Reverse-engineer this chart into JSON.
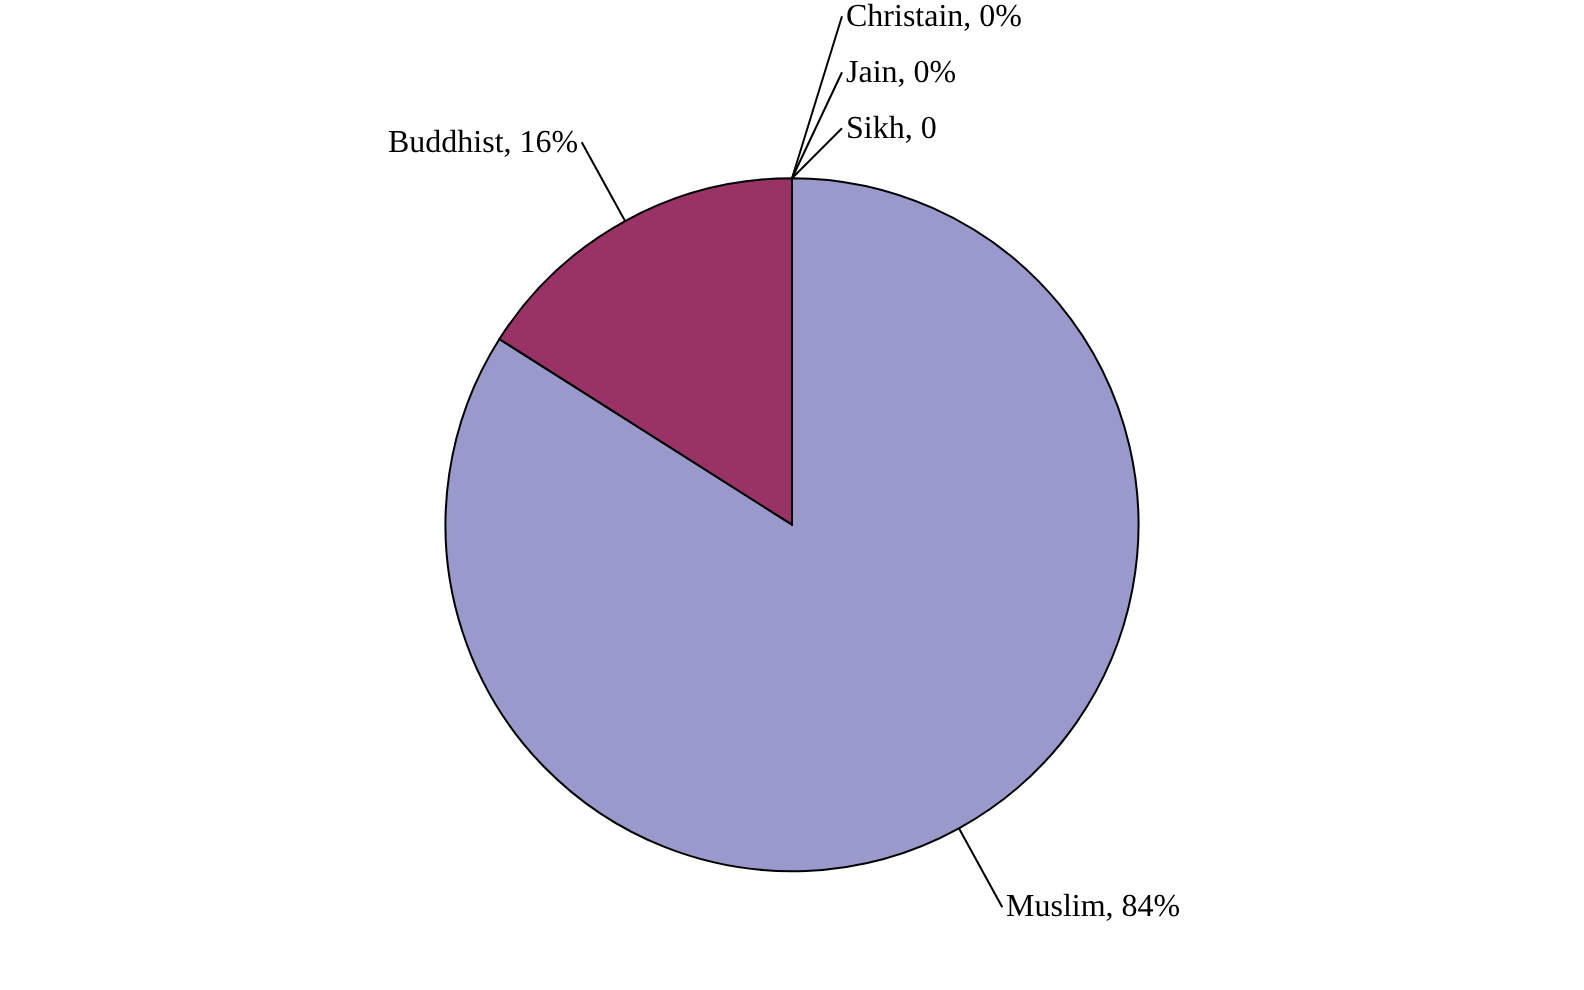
{
  "chart_data": {
    "type": "pie",
    "categories": [
      "Muslim",
      "Buddhist",
      "Christain",
      "Jain",
      "Sikh"
    ],
    "values": [
      84,
      16,
      0,
      0,
      0
    ],
    "colors": [
      "#9999cc",
      "#993366",
      "#ffffcc",
      "#ccffff",
      "#660066"
    ],
    "value_labels": [
      ", 84%",
      ", 16%",
      ", 0%",
      ", 0%",
      ", 0"
    ],
    "legend": false
  }
}
